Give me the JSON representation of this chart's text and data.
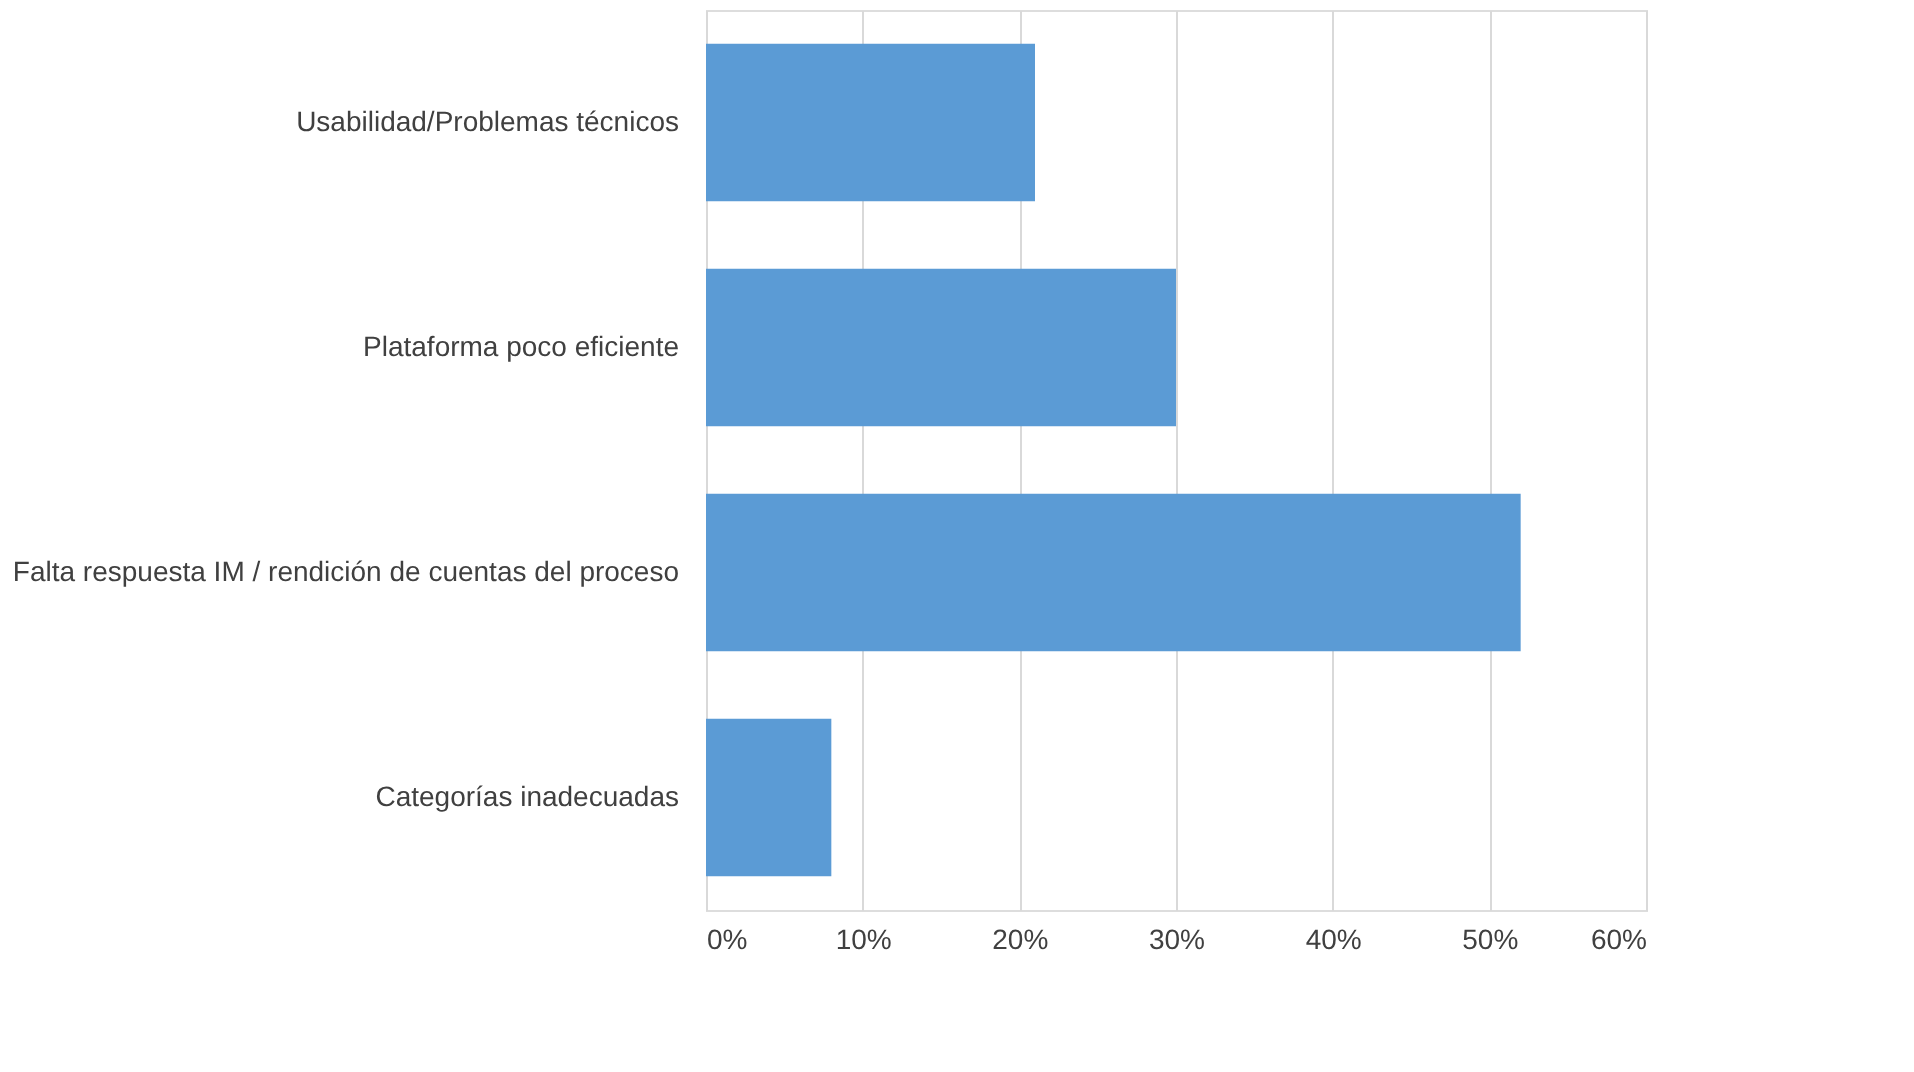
{
  "chart_data": {
    "type": "bar",
    "orientation": "horizontal",
    "categories": [
      "Usabilidad/Problemas técnicos",
      "Plataforma poco eficiente",
      "Falta respuesta IM / rendición de cuentas del proceso",
      "Categorías inadecuadas"
    ],
    "values": [
      21,
      30,
      52,
      8
    ],
    "color": "#5b9bd5",
    "xlim": [
      0,
      60
    ],
    "xticks": [
      {
        "value": 0,
        "label": "0%"
      },
      {
        "value": 10,
        "label": "10%"
      },
      {
        "value": 20,
        "label": "20%"
      },
      {
        "value": 30,
        "label": "30%"
      },
      {
        "value": 40,
        "label": "40%"
      },
      {
        "value": 50,
        "label": "50%"
      },
      {
        "value": 60,
        "label": "60%"
      }
    ],
    "grid": "x"
  }
}
